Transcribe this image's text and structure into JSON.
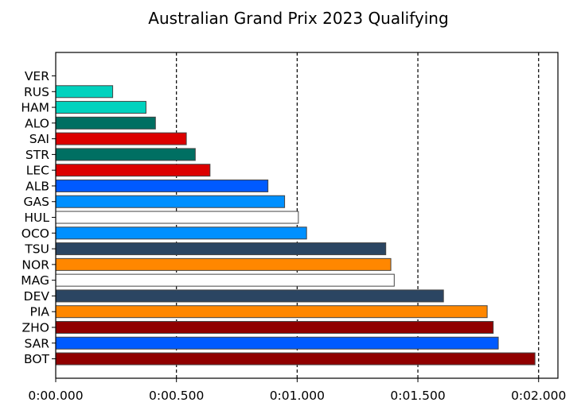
{
  "chart_data": {
    "type": "bar",
    "orientation": "horizontal",
    "title": "Australian Grand Prix 2023 Qualifying",
    "xlabel": "",
    "ylabel": "",
    "x_unit": "seconds gap to pole",
    "xlim": [
      0,
      2.08
    ],
    "x_ticks": [
      0,
      0.5,
      1.0,
      1.5,
      2.0
    ],
    "x_tick_labels": [
      "0:00.000",
      "0:00.500",
      "0:01.000",
      "0:01.500",
      "0:02.000"
    ],
    "grid": "x, dashed",
    "categories": [
      "VER",
      "RUS",
      "HAM",
      "ALO",
      "SAI",
      "STR",
      "LEC",
      "ALB",
      "GAS",
      "HUL",
      "OCO",
      "TSU",
      "NOR",
      "MAG",
      "DEV",
      "PIA",
      "ZHO",
      "SAR",
      "BOT"
    ],
    "values": [
      0.0,
      0.236,
      0.374,
      0.413,
      0.541,
      0.578,
      0.639,
      0.879,
      0.948,
      1.005,
      1.039,
      1.367,
      1.388,
      1.402,
      1.606,
      1.787,
      1.812,
      1.833,
      1.985
    ],
    "colors": [
      "#3671C6",
      "#00D2BE",
      "#00D2BE",
      "#006F62",
      "#DC0000",
      "#006F62",
      "#DC0000",
      "#005AFF",
      "#0090FF",
      "#FFFFFF",
      "#0090FF",
      "#2B4562",
      "#FF8700",
      "#FFFFFF",
      "#2B4562",
      "#FF8700",
      "#900000",
      "#005AFF",
      "#900000"
    ]
  }
}
